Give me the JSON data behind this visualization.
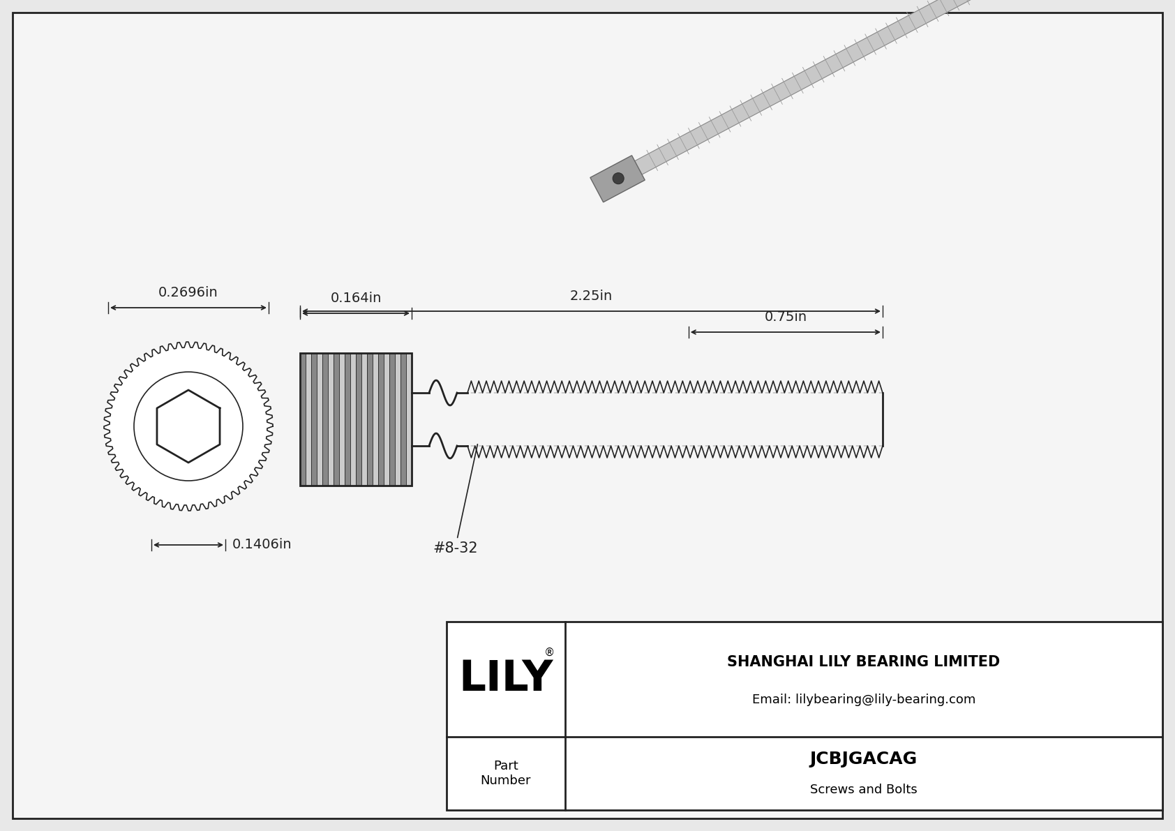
{
  "bg_color": "#e8e8e8",
  "inner_bg_color": "#f5f5f5",
  "border_color": "#222222",
  "line_color": "#222222",
  "title": "JCBJGACAG",
  "subtitle": "Screws and Bolts",
  "company": "SHANGHAI LILY BEARING LIMITED",
  "email": "Email: lilybearing@lily-bearing.com",
  "part_label": "Part\nNumber",
  "dim_head_width": "0.2696in",
  "dim_shaft_width": "0.1406in",
  "dim_head_length": "0.164in",
  "dim_total_length": "2.25in",
  "dim_thread_length": "0.75in",
  "thread_label": "#8-32",
  "lily_text": "LILY",
  "lily_reg": "®"
}
